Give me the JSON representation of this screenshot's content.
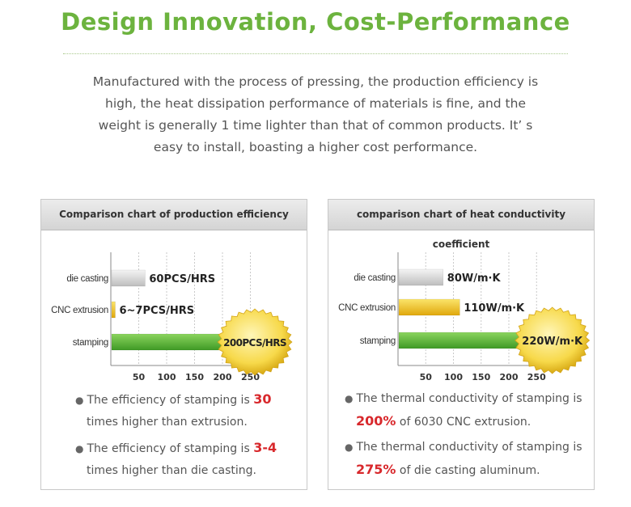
{
  "header": {
    "title": "Design Innovation, Cost-Performance",
    "intro_lines": [
      "Manufactured with the process of pressing, the production efficiency is",
      "high, the heat dissipation performance of materials is fine, and the",
      "weight is generally 1 time lighter than that of common products. It’ s",
      "easy to install, boasting a higher cost performance."
    ]
  },
  "colors": {
    "title_green": "#6cb33e",
    "highlight_red": "#d8282c",
    "bar_gray": "#cfcfcf",
    "bar_yellow": "#f2c21b",
    "bar_green": "#5dbb3a",
    "badge_gold": "#f7d94a"
  },
  "chart_data": [
    {
      "type": "bar",
      "orientation": "horizontal",
      "title": "Comparison chart of production efficiency",
      "categories": [
        "die casting",
        "CNC extrusion",
        "stamping"
      ],
      "values": [
        60,
        6.5,
        200
      ],
      "value_labels": [
        "60PCS/HRS",
        "6~7PCS/HRS",
        "200PCS/HRS"
      ],
      "bar_colors": [
        "gray",
        "yellow",
        "green"
      ],
      "highlight_index": 2,
      "xticks": [
        50,
        100,
        150,
        200,
        250
      ],
      "xlim": [
        0,
        270
      ],
      "grid": true,
      "bullets": [
        {
          "pre": "The efficiency of stamping is ",
          "hl": "30",
          "post": "",
          "line2_pre": "",
          "line2_hl": "",
          "line2": "times higher than extrusion."
        },
        {
          "pre": "The efficiency of stamping is ",
          "hl": "3-4",
          "post": "",
          "line2_pre": "",
          "line2_hl": "",
          "line2": "times higher than die casting."
        }
      ]
    },
    {
      "type": "bar",
      "orientation": "horizontal",
      "title": "comparison chart of heat conductivity coefficient",
      "categories": [
        "die casting",
        "CNC extrusion",
        "stamping"
      ],
      "values": [
        80,
        110,
        220
      ],
      "value_labels": [
        "80W/m·K",
        "110W/m·K",
        "220W/m·K"
      ],
      "bar_colors": [
        "gray",
        "yellow",
        "green"
      ],
      "highlight_index": 2,
      "xticks": [
        50,
        100,
        150,
        200,
        250
      ],
      "xlim": [
        0,
        270
      ],
      "grid": true,
      "bullets": [
        {
          "pre": "The thermal conductivity of stamping is",
          "hl": "",
          "post": "",
          "line2_pre": "",
          "line2_hl": "200%",
          "line2": " of 6030 CNC extrusion."
        },
        {
          "pre": "The thermal conductivity of stamping is",
          "hl": "",
          "post": "",
          "line2_pre": "",
          "line2_hl": "275%",
          "line2": " of die casting aluminum."
        }
      ]
    }
  ]
}
